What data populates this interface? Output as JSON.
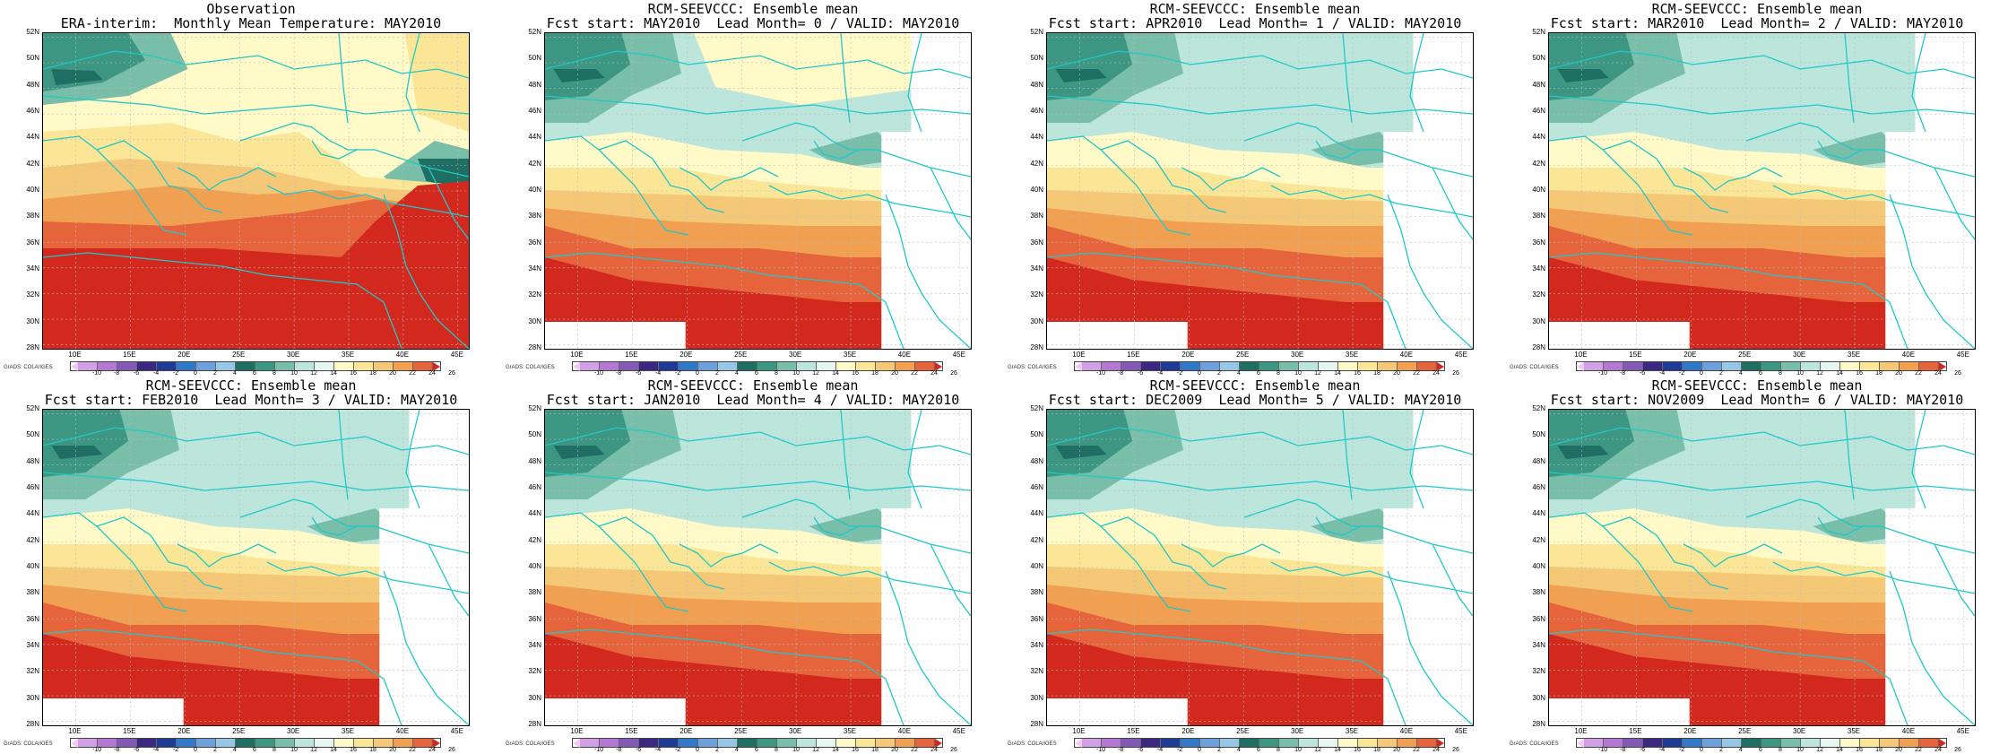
{
  "panels": [
    {
      "line1": "Observation",
      "line2": "ERA-interim:  Monthly Mean Temperature: MAY2010",
      "variant": "obs"
    },
    {
      "line1": "RCM-SEEVCCC: Ensemble mean",
      "line2": "Fcst start: MAY2010  Lead Month= 0 / VALID: MAY2010",
      "variant": "fc0"
    },
    {
      "line1": "RCM-SEEVCCC: Ensemble mean",
      "line2": "Fcst start: APR2010  Lead Month= 1 / VALID: MAY2010",
      "variant": "fc1"
    },
    {
      "line1": "RCM-SEEVCCC: Ensemble mean",
      "line2": "Fcst start: MAR2010  Lead Month= 2 / VALID: MAY2010",
      "variant": "fc2"
    },
    {
      "line1": "RCM-SEEVCCC: Ensemble mean",
      "line2": "Fcst start: FEB2010  Lead Month= 3 / VALID: MAY2010",
      "variant": "fc3"
    },
    {
      "line1": "RCM-SEEVCCC: Ensemble mean",
      "line2": "Fcst start: JAN2010  Lead Month= 4 / VALID: MAY2010",
      "variant": "fc3"
    },
    {
      "line1": "RCM-SEEVCCC: Ensemble mean",
      "line2": "Fcst start: DEC2009  Lead Month= 5 / VALID: MAY2010",
      "variant": "fc3"
    },
    {
      "line1": "RCM-SEEVCCC: Ensemble mean",
      "line2": "Fcst start: NOV2009  Lead Month= 6 / VALID: MAY2010",
      "variant": "fc6"
    }
  ],
  "lat_labels": [
    "52N",
    "50N",
    "48N",
    "46N",
    "44N",
    "42N",
    "40N",
    "38N",
    "36N",
    "34N",
    "32N",
    "30N",
    "28N"
  ],
  "lon_labels": [
    "10E",
    "15E",
    "20E",
    "25E",
    "30E",
    "35E",
    "40E",
    "45E"
  ],
  "credit": "GrADS: COLA/IGES",
  "colorbar": {
    "labels": [
      "-10",
      "-8",
      "-6",
      "-4",
      "-2",
      "0",
      "2",
      "4",
      "6",
      "8",
      "10",
      "12",
      "14",
      "16",
      "18",
      "20",
      "22",
      "24",
      "26"
    ],
    "colors": [
      "#f0c8f0",
      "#d2a0e6",
      "#b478d2",
      "#825ab4",
      "#3c2882",
      "#1e3c96",
      "#3278c8",
      "#6ea0dc",
      "#96c8e6",
      "#1e6e64",
      "#3c9682",
      "#78bea8",
      "#bce6dc",
      "#e6f5f0",
      "#fffac8",
      "#fae696",
      "#f5c878",
      "#f0a050",
      "#e6643c",
      "#d2281e"
    ],
    "field_colors": {
      "darkest": "#1e6e64",
      "dark": "#3c9682",
      "mid": "#78bea8",
      "light": "#bce6dc",
      "cream": "#fffac8",
      "yellow": "#fae696",
      "orange_light": "#f5c878",
      "orange": "#f0a050",
      "red_orange": "#e6643c",
      "red": "#d2281e",
      "coast": "#20c8c8"
    }
  }
}
